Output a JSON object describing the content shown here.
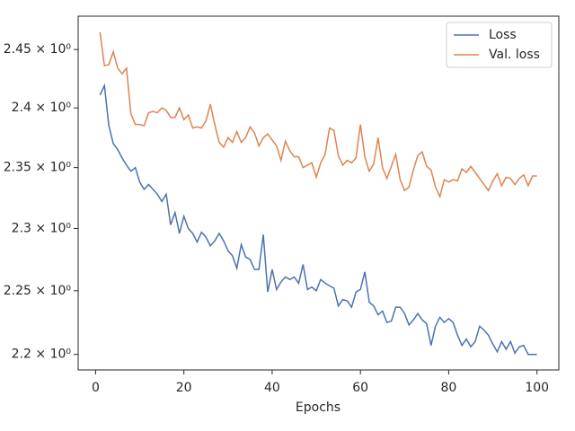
{
  "chart_data": {
    "type": "line",
    "xlabel": "Epochs",
    "x": [
      1,
      2,
      3,
      4,
      5,
      6,
      7,
      8,
      9,
      10,
      11,
      12,
      13,
      14,
      15,
      16,
      17,
      18,
      19,
      20,
      21,
      22,
      23,
      24,
      25,
      26,
      27,
      28,
      29,
      30,
      31,
      32,
      33,
      34,
      35,
      36,
      37,
      38,
      39,
      40,
      41,
      42,
      43,
      44,
      45,
      46,
      47,
      48,
      49,
      50,
      51,
      52,
      53,
      54,
      55,
      56,
      57,
      58,
      59,
      60,
      61,
      62,
      63,
      64,
      65,
      66,
      67,
      68,
      69,
      70,
      71,
      72,
      73,
      74,
      75,
      76,
      77,
      78,
      79,
      80,
      81,
      82,
      83,
      84,
      85,
      86,
      87,
      88,
      89,
      90,
      91,
      92,
      93,
      94,
      95,
      96,
      97,
      98,
      99,
      100
    ],
    "series": [
      {
        "name": "Loss",
        "color": "#4c72b0",
        "values": [
          2.411,
          2.419,
          2.385,
          2.37,
          2.365,
          2.358,
          2.352,
          2.347,
          2.35,
          2.338,
          2.332,
          2.336,
          2.332,
          2.328,
          2.322,
          2.328,
          2.303,
          2.313,
          2.296,
          2.31,
          2.3,
          2.296,
          2.289,
          2.297,
          2.293,
          2.286,
          2.29,
          2.296,
          2.29,
          2.282,
          2.278,
          2.268,
          2.287,
          2.277,
          2.275,
          2.267,
          2.267,
          2.295,
          2.249,
          2.267,
          2.251,
          2.257,
          2.261,
          2.259,
          2.261,
          2.256,
          2.271,
          2.251,
          2.253,
          2.25,
          2.259,
          2.256,
          2.254,
          2.252,
          2.238,
          2.243,
          2.242,
          2.237,
          2.249,
          2.251,
          2.265,
          2.241,
          2.238,
          2.231,
          2.234,
          2.225,
          2.226,
          2.237,
          2.237,
          2.232,
          2.223,
          2.227,
          2.232,
          2.227,
          2.224,
          2.207,
          2.222,
          2.229,
          2.225,
          2.228,
          2.225,
          2.215,
          2.207,
          2.212,
          2.206,
          2.21,
          2.222,
          2.219,
          2.215,
          2.208,
          2.202,
          2.21,
          2.204,
          2.21,
          2.201,
          2.206,
          2.207,
          2.2,
          2.2,
          2.2
        ]
      },
      {
        "name": "Val. loss",
        "color": "#dd8452",
        "values": [
          2.465,
          2.436,
          2.437,
          2.448,
          2.434,
          2.429,
          2.434,
          2.395,
          2.386,
          2.386,
          2.385,
          2.396,
          2.397,
          2.396,
          2.4,
          2.398,
          2.392,
          2.392,
          2.4,
          2.39,
          2.394,
          2.383,
          2.384,
          2.383,
          2.389,
          2.403,
          2.386,
          2.371,
          2.367,
          2.375,
          2.371,
          2.38,
          2.371,
          2.375,
          2.384,
          2.379,
          2.368,
          2.375,
          2.378,
          2.373,
          2.368,
          2.356,
          2.372,
          2.364,
          2.359,
          2.359,
          2.35,
          2.352,
          2.354,
          2.342,
          2.354,
          2.361,
          2.383,
          2.381,
          2.36,
          2.352,
          2.356,
          2.354,
          2.358,
          2.386,
          2.359,
          2.347,
          2.353,
          2.375,
          2.35,
          2.341,
          2.351,
          2.361,
          2.34,
          2.331,
          2.334,
          2.348,
          2.36,
          2.363,
          2.351,
          2.348,
          2.334,
          2.326,
          2.34,
          2.338,
          2.34,
          2.339,
          2.349,
          2.346,
          2.351,
          2.346,
          2.341,
          2.336,
          2.331,
          2.339,
          2.345,
          2.335,
          2.342,
          2.341,
          2.336,
          2.341,
          2.344,
          2.335,
          2.343,
          2.343
        ]
      }
    ],
    "xlim": [
      -3.95,
      104.95
    ],
    "xticks": [
      0,
      20,
      40,
      60,
      80,
      100
    ],
    "ylim": [
      2.188,
      2.479
    ],
    "yscale": "log",
    "yticks": [
      {
        "value": 2.2,
        "label": "2.2 × 10⁰"
      },
      {
        "value": 2.25,
        "label": "2.25 × 10⁰"
      },
      {
        "value": 2.3,
        "label": "2.3 × 10⁰"
      },
      {
        "value": 2.35,
        "label": "2.35 × 10⁰"
      },
      {
        "value": 2.4,
        "label": "2.4 × 10⁰"
      },
      {
        "value": 2.45,
        "label": "2.45 × 10⁰"
      }
    ],
    "legend": "upper right"
  }
}
